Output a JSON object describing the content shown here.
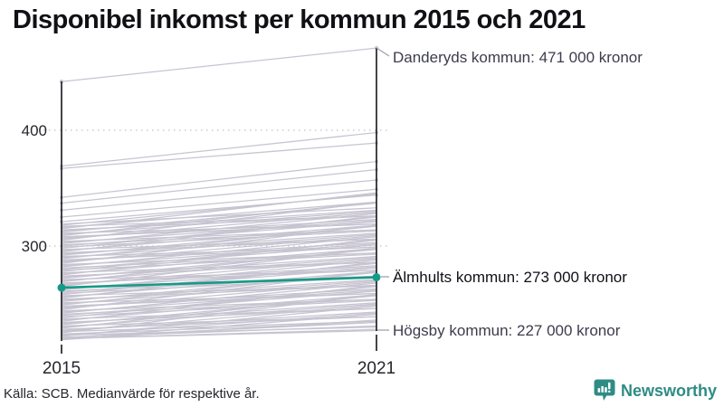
{
  "title": "Disponibel inkomst per kommun 2015 och 2021",
  "source": "Källa: SCB. Medianvärde för respektive år.",
  "branding": {
    "name": "Newsworthy",
    "color": "#2e8c84",
    "icon": "bar-chart-speech-bubble-icon"
  },
  "chart_data": {
    "type": "line",
    "subtype": "slope-chart",
    "title": "Disponibel inkomst per kommun 2015 och 2021",
    "xlabel": "",
    "ylabel": "",
    "unit": "tusen kronor",
    "x_labels": [
      "2015",
      "2021"
    ],
    "y_ticks": [
      "400",
      "300"
    ],
    "y_tick_values": [
      400,
      300
    ],
    "ylim": [
      215,
      475
    ],
    "grid": "dotted horizontal at 300 and 400",
    "legend": "none",
    "line_color": "#c7c4d1",
    "accent_color": "#169a88",
    "annotations": [
      {
        "label": "Danderyds kommun: 471 000 kronor",
        "series": "Danderyds kommun",
        "value_2021": 471
      },
      {
        "label": "Älmhults kommun: 273 000 kronor",
        "series": "Älmhults kommun",
        "value_2021": 273
      },
      {
        "label": "Högsby kommun: 227 000 kronor",
        "series": "Högsby kommun",
        "value_2021": 227
      }
    ],
    "highlight_series": {
      "name": "Älmhults kommun",
      "values": [
        264,
        273
      ]
    },
    "named_series": [
      {
        "name": "Danderyds kommun",
        "values": [
          442,
          471
        ]
      },
      {
        "name": "Högsby kommun",
        "values": [
          220,
          227
        ]
      }
    ],
    "background_lines": [
      [
        369,
        398
      ],
      [
        367,
        389
      ],
      [
        342,
        373
      ],
      [
        337,
        366
      ],
      [
        331,
        357
      ],
      [
        325,
        349
      ],
      [
        321,
        344
      ],
      [
        319,
        333
      ],
      [
        318,
        345
      ],
      [
        317,
        326
      ],
      [
        316,
        338
      ],
      [
        315,
        346
      ],
      [
        314,
        326
      ],
      [
        313,
        331
      ],
      [
        312,
        337
      ],
      [
        311,
        319
      ],
      [
        310,
        330
      ],
      [
        309,
        338
      ],
      [
        308,
        319
      ],
      [
        307,
        323
      ],
      [
        306,
        329
      ],
      [
        305,
        338
      ],
      [
        304,
        314
      ],
      [
        303,
        322
      ],
      [
        302,
        328
      ],
      [
        301,
        314
      ],
      [
        300,
        321
      ],
      [
        299,
        313
      ],
      [
        298,
        325
      ],
      [
        297,
        306
      ],
      [
        296,
        318
      ],
      [
        295,
        326
      ],
      [
        294,
        306
      ],
      [
        293,
        311
      ],
      [
        292,
        317
      ],
      [
        291,
        299
      ],
      [
        290,
        310
      ],
      [
        289,
        318
      ],
      [
        288,
        299
      ],
      [
        287,
        303
      ],
      [
        286,
        309
      ],
      [
        285,
        318
      ],
      [
        284,
        294
      ],
      [
        283,
        302
      ],
      [
        282,
        308
      ],
      [
        281,
        294
      ],
      [
        280,
        301
      ],
      [
        279,
        293
      ],
      [
        278,
        305
      ],
      [
        277,
        286
      ],
      [
        276,
        298
      ],
      [
        275,
        306
      ],
      [
        274,
        286
      ],
      [
        273,
        291
      ],
      [
        272,
        297
      ],
      [
        271,
        279
      ],
      [
        270,
        290
      ],
      [
        269,
        298
      ],
      [
        268,
        279
      ],
      [
        267,
        283
      ],
      [
        266,
        289
      ],
      [
        265,
        298
      ],
      [
        264,
        274
      ],
      [
        263,
        282
      ],
      [
        262,
        288
      ],
      [
        261,
        274
      ],
      [
        260,
        281
      ],
      [
        259,
        273
      ],
      [
        258,
        285
      ],
      [
        257,
        266
      ],
      [
        256,
        278
      ],
      [
        255,
        286
      ],
      [
        254,
        266
      ],
      [
        253,
        271
      ],
      [
        252,
        277
      ],
      [
        251,
        259
      ],
      [
        250,
        270
      ],
      [
        249,
        278
      ],
      [
        248,
        259
      ],
      [
        247,
        263
      ],
      [
        246,
        269
      ],
      [
        245,
        278
      ],
      [
        244,
        254
      ],
      [
        243,
        262
      ],
      [
        242,
        268
      ],
      [
        241,
        254
      ],
      [
        240,
        261
      ],
      [
        239,
        253
      ],
      [
        238,
        265
      ],
      [
        237,
        246
      ],
      [
        236,
        258
      ],
      [
        235,
        266
      ],
      [
        234,
        246
      ],
      [
        233,
        251
      ],
      [
        232,
        257
      ],
      [
        231,
        239
      ],
      [
        230,
        250
      ],
      [
        229,
        258
      ],
      [
        228,
        239
      ],
      [
        227,
        243
      ],
      [
        226,
        249
      ],
      [
        225,
        258
      ],
      [
        224,
        234
      ],
      [
        223,
        242
      ],
      [
        222,
        248
      ],
      [
        221,
        234
      ],
      [
        220,
        241
      ],
      [
        219,
        236
      ],
      [
        220,
        228
      ],
      [
        221,
        231
      ],
      [
        223,
        230
      ],
      [
        226,
        235
      ]
    ]
  }
}
